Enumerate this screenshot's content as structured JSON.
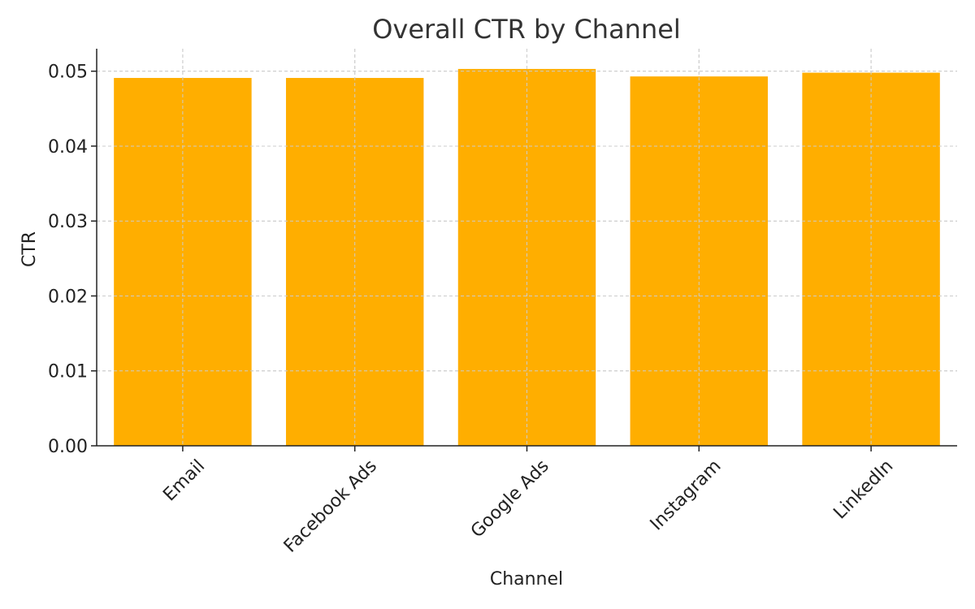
{
  "chart_data": {
    "type": "bar",
    "title": "Overall CTR by Channel",
    "xlabel": "Channel",
    "ylabel": "CTR",
    "categories": [
      "Email",
      "Facebook Ads",
      "Google Ads",
      "Instagram",
      "LinkedIn"
    ],
    "values": [
      0.0491,
      0.0491,
      0.0503,
      0.0493,
      0.0498
    ],
    "ylim": [
      0,
      0.053
    ],
    "yticks": [
      "0.00",
      "0.01",
      "0.02",
      "0.03",
      "0.04",
      "0.05"
    ],
    "ytick_values": [
      0,
      0.01,
      0.02,
      0.03,
      0.04,
      0.05
    ],
    "grid": true,
    "bar_color": "#FFAE00",
    "grid_color": "#cccccc",
    "axis_color": "#222222"
  }
}
